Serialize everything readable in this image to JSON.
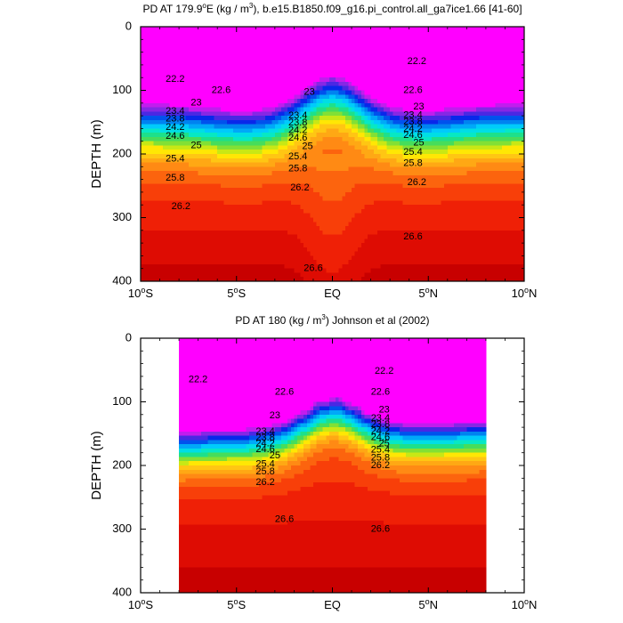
{
  "chart_data": [
    {
      "type": "contour",
      "title": "PD AT 179.9°E (kg / m³), b.e15.B1850.f09_g16.pi_control.all_ga7ice1.66 [41-60]",
      "title_parts": {
        "pre": "PD AT 179.9",
        "sup1": "o",
        "mid": "E (kg / m",
        "sup2": "3",
        "post": "), b.e15.B1850.f09_g16.pi_control.all_ga7ice1.66 [41-60]"
      },
      "ylabel": "DEPTH (m)",
      "xlim": [
        -10,
        10
      ],
      "ylim": [
        400,
        0
      ],
      "yticks": [
        0,
        100,
        200,
        300,
        400
      ],
      "xtick_labels": [
        {
          "value": -10,
          "base": "10",
          "sup": "o",
          "suffix": "S"
        },
        {
          "value": -5,
          "base": "5",
          "sup": "o",
          "suffix": "S"
        },
        {
          "value": 0,
          "base": "EQ",
          "sup": "",
          "suffix": ""
        },
        {
          "value": 5,
          "base": "5",
          "sup": "o",
          "suffix": "N"
        },
        {
          "value": 10,
          "base": "10",
          "sup": "o",
          "suffix": "N"
        }
      ],
      "data_xlim": [
        -10,
        10
      ],
      "contour_labels": [
        {
          "text": "22.2",
          "x": -8.2,
          "y": 83
        },
        {
          "text": "22.6",
          "x": -5.8,
          "y": 100
        },
        {
          "text": "23",
          "x": -7.1,
          "y": 120
        },
        {
          "text": "23.4",
          "x": -8.2,
          "y": 133
        },
        {
          "text": "23.8",
          "x": -8.2,
          "y": 145
        },
        {
          "text": "24.2",
          "x": -8.2,
          "y": 158
        },
        {
          "text": "24.6",
          "x": -8.2,
          "y": 172
        },
        {
          "text": "25",
          "x": -7.1,
          "y": 187
        },
        {
          "text": "25.4",
          "x": -8.2,
          "y": 208
        },
        {
          "text": "25.8",
          "x": -8.2,
          "y": 238
        },
        {
          "text": "26.2",
          "x": -7.9,
          "y": 283
        },
        {
          "text": "23",
          "x": -1.2,
          "y": 103
        },
        {
          "text": "23.4",
          "x": -1.8,
          "y": 140
        },
        {
          "text": "23.8",
          "x": -1.8,
          "y": 151
        },
        {
          "text": "24.2",
          "x": -1.8,
          "y": 163
        },
        {
          "text": "24.6",
          "x": -1.8,
          "y": 175
        },
        {
          "text": "25",
          "x": -1.3,
          "y": 188
        },
        {
          "text": "25.4",
          "x": -1.8,
          "y": 204
        },
        {
          "text": "25.8",
          "x": -1.8,
          "y": 223
        },
        {
          "text": "26.2",
          "x": -1.7,
          "y": 253
        },
        {
          "text": "26.6",
          "x": -1.0,
          "y": 380
        },
        {
          "text": "22.2",
          "x": 4.4,
          "y": 55
        },
        {
          "text": "22.6",
          "x": 4.2,
          "y": 100
        },
        {
          "text": "23",
          "x": 4.5,
          "y": 126
        },
        {
          "text": "23.4",
          "x": 4.2,
          "y": 139
        },
        {
          "text": "23.8",
          "x": 4.2,
          "y": 150
        },
        {
          "text": "24.2",
          "x": 4.2,
          "y": 161
        },
        {
          "text": "24.6",
          "x": 4.2,
          "y": 171
        },
        {
          "text": "25",
          "x": 4.5,
          "y": 183
        },
        {
          "text": "25.4",
          "x": 4.2,
          "y": 197
        },
        {
          "text": "25.8",
          "x": 4.2,
          "y": 215
        },
        {
          "text": "26.2",
          "x": 4.4,
          "y": 245
        },
        {
          "text": "26.6",
          "x": 4.2,
          "y": 330
        }
      ]
    },
    {
      "type": "contour",
      "title": "PD AT 180 (kg / m³) Johnson et al (2002)",
      "title_parts": {
        "pre": "PD AT 180 (kg / m",
        "sup1": "",
        "mid": "",
        "sup2": "3",
        "post": ") Johnson et al (2002)"
      },
      "ylabel": "DEPTH (m)",
      "xlim": [
        -10,
        10
      ],
      "ylim": [
        400,
        0
      ],
      "yticks": [
        0,
        100,
        200,
        300,
        400
      ],
      "xtick_labels": [
        {
          "value": -10,
          "base": "10",
          "sup": "o",
          "suffix": "S"
        },
        {
          "value": -5,
          "base": "5",
          "sup": "o",
          "suffix": "S"
        },
        {
          "value": 0,
          "base": "EQ",
          "sup": "",
          "suffix": ""
        },
        {
          "value": 5,
          "base": "5",
          "sup": "o",
          "suffix": "N"
        },
        {
          "value": 10,
          "base": "10",
          "sup": "o",
          "suffix": "N"
        }
      ],
      "data_xlim": [
        -8,
        8
      ],
      "contour_labels": [
        {
          "text": "22.2",
          "x": -7.0,
          "y": 65
        },
        {
          "text": "22.6",
          "x": -2.5,
          "y": 85
        },
        {
          "text": "23",
          "x": -3.0,
          "y": 122
        },
        {
          "text": "23.4",
          "x": -3.5,
          "y": 147
        },
        {
          "text": "23.8",
          "x": -3.5,
          "y": 157
        },
        {
          "text": "24.2",
          "x": -3.5,
          "y": 166
        },
        {
          "text": "24.6",
          "x": -3.5,
          "y": 175
        },
        {
          "text": "25",
          "x": -3.0,
          "y": 185
        },
        {
          "text": "25.4",
          "x": -3.5,
          "y": 198
        },
        {
          "text": "25.8",
          "x": -3.5,
          "y": 210
        },
        {
          "text": "26.2",
          "x": -3.5,
          "y": 227
        },
        {
          "text": "26.6",
          "x": -2.5,
          "y": 285
        },
        {
          "text": "22.2",
          "x": 2.7,
          "y": 52
        },
        {
          "text": "22.6",
          "x": 2.5,
          "y": 85
        },
        {
          "text": "23",
          "x": 2.7,
          "y": 113
        },
        {
          "text": "23.4",
          "x": 2.5,
          "y": 126
        },
        {
          "text": "23.8",
          "x": 2.5,
          "y": 136
        },
        {
          "text": "24.2",
          "x": 2.5,
          "y": 146
        },
        {
          "text": "24.6",
          "x": 2.5,
          "y": 156
        },
        {
          "text": "25",
          "x": 2.7,
          "y": 166
        },
        {
          "text": "25.4",
          "x": 2.5,
          "y": 176
        },
        {
          "text": "25.8",
          "x": 2.5,
          "y": 188
        },
        {
          "text": "26.2",
          "x": 2.5,
          "y": 200
        },
        {
          "text": "26.6",
          "x": 2.5,
          "y": 300
        }
      ]
    }
  ]
}
